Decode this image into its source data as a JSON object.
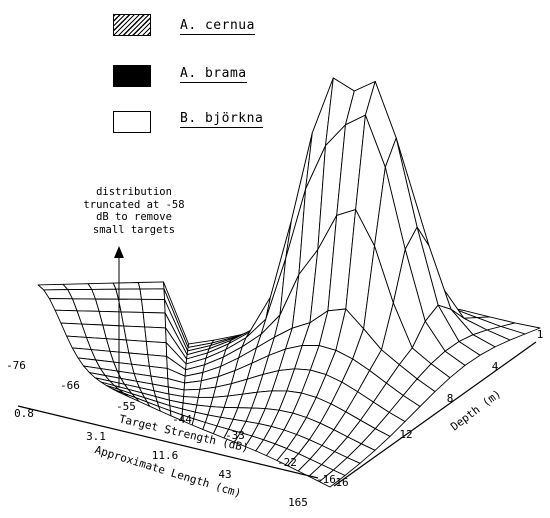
{
  "legend": [
    {
      "label": "A. cernua",
      "pattern": "hatched"
    },
    {
      "label": "A. brama",
      "pattern": "solid-black"
    },
    {
      "label": "B. björkna",
      "pattern": "white"
    }
  ],
  "annotation": "distribution truncated at -58 dB to remove small targets",
  "chart_data": {
    "type": "surface",
    "title": "",
    "x_label": "Target Strength (dB)",
    "x_ticks": [
      "-76",
      "-66",
      "-55",
      "-44",
      "-33",
      "-22",
      "-16"
    ],
    "x2_label": "Approximate Length (cm)",
    "x2_ticks": [
      "0.8",
      "3.1",
      "11.6",
      "43",
      "165"
    ],
    "y_label": "Depth (m)",
    "y_ticks": [
      "1",
      "4",
      "8",
      "12",
      "16"
    ],
    "grid": {
      "ts_range": [
        -76,
        -16
      ],
      "depth_range": [
        1,
        16
      ],
      "cells_x": 20,
      "cells_y": 14
    },
    "truncation_db": -58,
    "peaks": [
      {
        "ts": -36,
        "depth": 5.0,
        "relative_height": 1.0
      },
      {
        "ts": -32,
        "depth": 5.5,
        "relative_height": 0.99
      }
    ],
    "plateau_relative_height": 0.22,
    "floor_relative_height": 0.0
  }
}
